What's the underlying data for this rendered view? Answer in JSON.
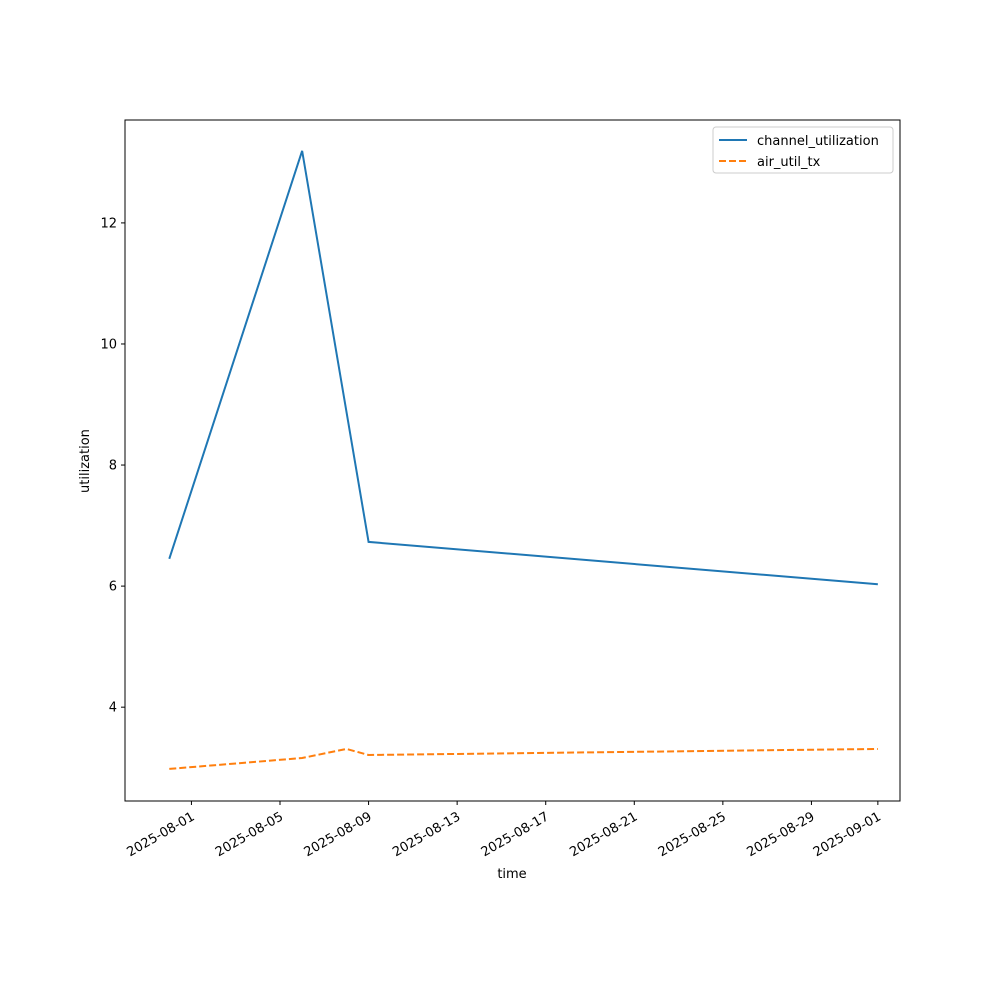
{
  "chart_data": {
    "type": "line",
    "xlabel": "time",
    "ylabel": "utilization",
    "series": [
      {
        "name": "channel_utilization",
        "color": "#1f77b4",
        "dash": "solid",
        "x": [
          "2025-07-31",
          "2025-08-06",
          "2025-08-09",
          "2025-09-01"
        ],
        "values": [
          6.45,
          13.19,
          6.73,
          6.03
        ]
      },
      {
        "name": "air_util_tx",
        "color": "#ff7f0e",
        "dash": "dashed",
        "x": [
          "2025-07-31",
          "2025-08-06",
          "2025-08-08",
          "2025-08-09",
          "2025-09-01"
        ],
        "values": [
          2.98,
          3.16,
          3.31,
          3.21,
          3.31
        ]
      }
    ],
    "xlim": [
      "2025-07-29",
      "2025-09-02"
    ],
    "xticks": [
      "2025-08-01",
      "2025-08-05",
      "2025-08-09",
      "2025-08-13",
      "2025-08-17",
      "2025-08-21",
      "2025-08-25",
      "2025-08-29",
      "2025-09-01"
    ],
    "ylim": [
      2.45,
      13.7
    ],
    "yticks": [
      4,
      6,
      8,
      10,
      12
    ],
    "legend": "upper right"
  }
}
